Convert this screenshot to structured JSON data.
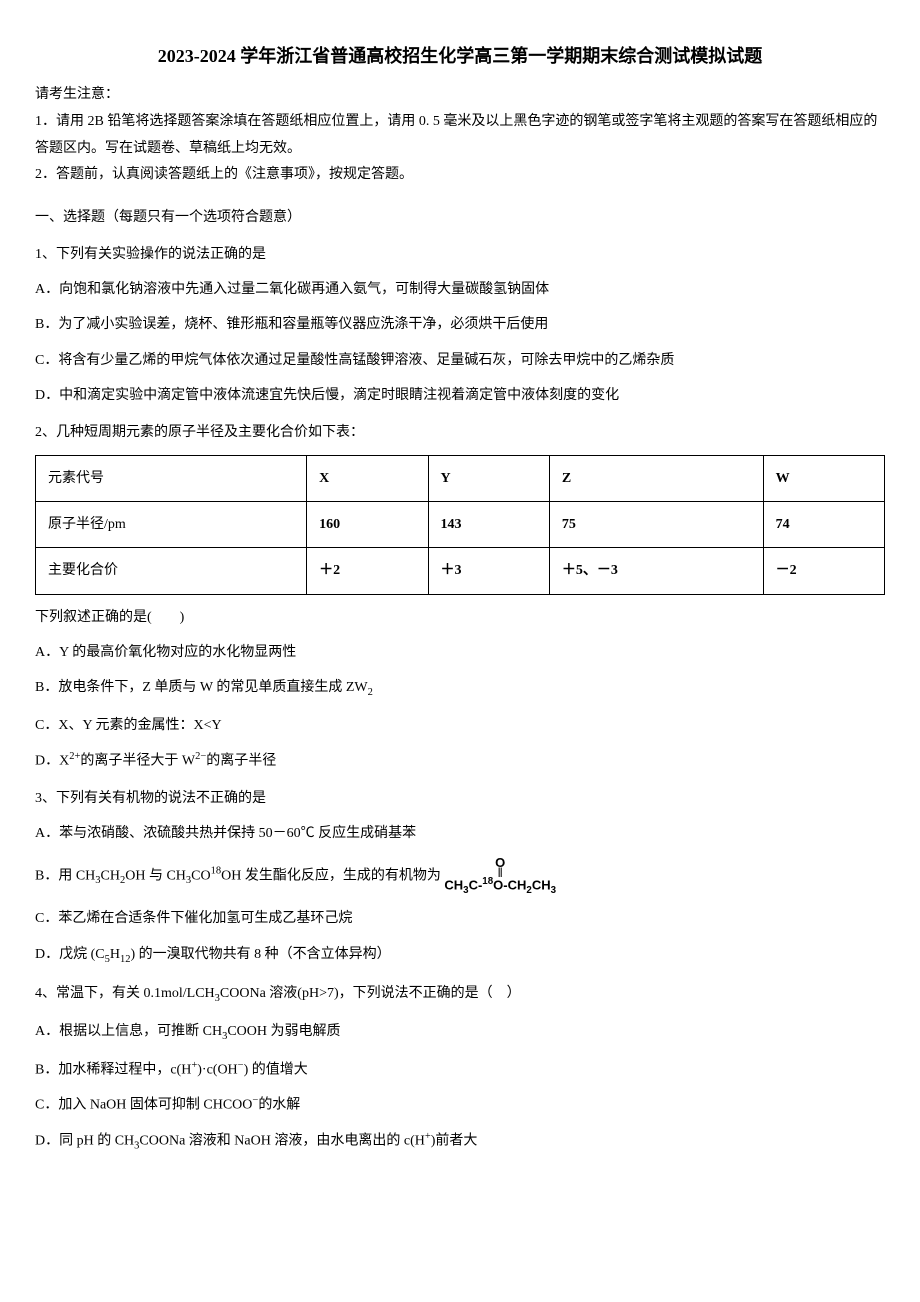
{
  "title": "2023-2024 学年浙江省普通高校招生化学高三第一学期期末综合测试模拟试题",
  "notice_header": "请考生注意：",
  "notice_1": "1．请用 2B 铅笔将选择题答案涂填在答题纸相应位置上，请用 0. 5 毫米及以上黑色字迹的钢笔或签字笔将主观题的答案写在答题纸相应的答题区内。写在试题卷、草稿纸上均无效。",
  "notice_2": "2．答题前，认真阅读答题纸上的《注意事项》，按规定答题。",
  "section1": "一、选择题（每题只有一个选项符合题意）",
  "q1": {
    "stem": "1、下列有关实验操作的说法正确的是",
    "A": "A．向饱和氯化钠溶液中先通入过量二氧化碳再通入氨气，可制得大量碳酸氢钠固体",
    "B": "B．为了减小实验误差，烧杯、锥形瓶和容量瓶等仪器应洗涤干净，必须烘干后使用",
    "C": "C．将含有少量乙烯的甲烷气体依次通过足量酸性高锰酸钾溶液、足量碱石灰，可除去甲烷中的乙烯杂质",
    "D": "D．中和滴定实验中滴定管中液体流速宜先快后慢，滴定时眼睛注视着滴定管中液体刻度的变化"
  },
  "q2": {
    "stem": "2、几种短周期元素的原子半径及主要化合价如下表：",
    "table": {
      "headers": [
        "元素代号",
        "X",
        "Y",
        "Z",
        "W"
      ],
      "row1_label": "原子半径/pm",
      "row1": [
        "160",
        "143",
        "75",
        "74"
      ],
      "row2_label": "主要化合价",
      "row2": [
        "＋2",
        "＋3",
        "＋5、－3",
        "－2"
      ]
    },
    "follow": "下列叙述正确的是(　　)",
    "A": "A．Y 的最高价氧化物对应的水化物显两性",
    "B_prefix": "B．放电条件下，Z 单质与 W 的常见单质直接生成 ZW",
    "B_sub": "2",
    "C": "C．X、Y 元素的金属性：X<Y",
    "D_prefix": "D．X",
    "D_sup1": "2+",
    "D_mid": "的离子半径大于 W",
    "D_sup2": "2−",
    "D_suffix": "的离子半径"
  },
  "q3": {
    "stem": "3、下列有关有机物的说法不正确的是",
    "A": "A．苯与浓硝酸、浓硫酸共热并保持 50－60℃ 反应生成硝基苯",
    "B_prefix": "B．用 CH",
    "B_s1": "3",
    "B_t1": "CH",
    "B_s2": "2",
    "B_t2": "OH 与 CH",
    "B_s3": "3",
    "B_t3": "CO",
    "B_sup1": "18",
    "B_t4": "OH 发生酯化反应，生成的有机物为",
    "B_formula_top": "O",
    "B_formula_mid": "‖",
    "B_formula_bottom_1": "CH",
    "B_formula_bottom_s1": "3",
    "B_formula_bottom_2": "C-",
    "B_formula_bottom_sup": "18",
    "B_formula_bottom_3": "O-CH",
    "B_formula_bottom_s2": "2",
    "B_formula_bottom_4": "CH",
    "B_formula_bottom_s3": "3",
    "C": "C．苯乙烯在合适条件下催化加氢可生成乙基环己烷",
    "D_prefix": "D．戊烷 (C",
    "D_s1": "5",
    "D_mid": "H",
    "D_s2": "12",
    "D_suffix": ") 的一溴取代物共有 8 种（不含立体异构）"
  },
  "q4": {
    "stem_prefix": "4、常温下，有关 0.1mol/LCH",
    "stem_s1": "3",
    "stem_suffix": "COONa 溶液(pH>7)，下列说法不正确的是（　）",
    "A_prefix": "A．根据以上信息，可推断 CH",
    "A_s1": "3",
    "A_suffix": "COOH 为弱电解质",
    "B_prefix": "B．加水稀释过程中，c(H",
    "B_sup1": "+",
    "B_mid": ")·c(OH",
    "B_sup2": "−",
    "B_suffix": ") 的值增大",
    "C_prefix": "C．加入 NaOH 固体可抑制 CHCOO",
    "C_sup": "−",
    "C_suffix": "的水解",
    "D_prefix": "D．同 pH 的 CH",
    "D_s1": "3",
    "D_mid": "COONa 溶液和 NaOH 溶液，由水电离出的 c(H",
    "D_sup": "+",
    "D_suffix": ")前者大"
  }
}
